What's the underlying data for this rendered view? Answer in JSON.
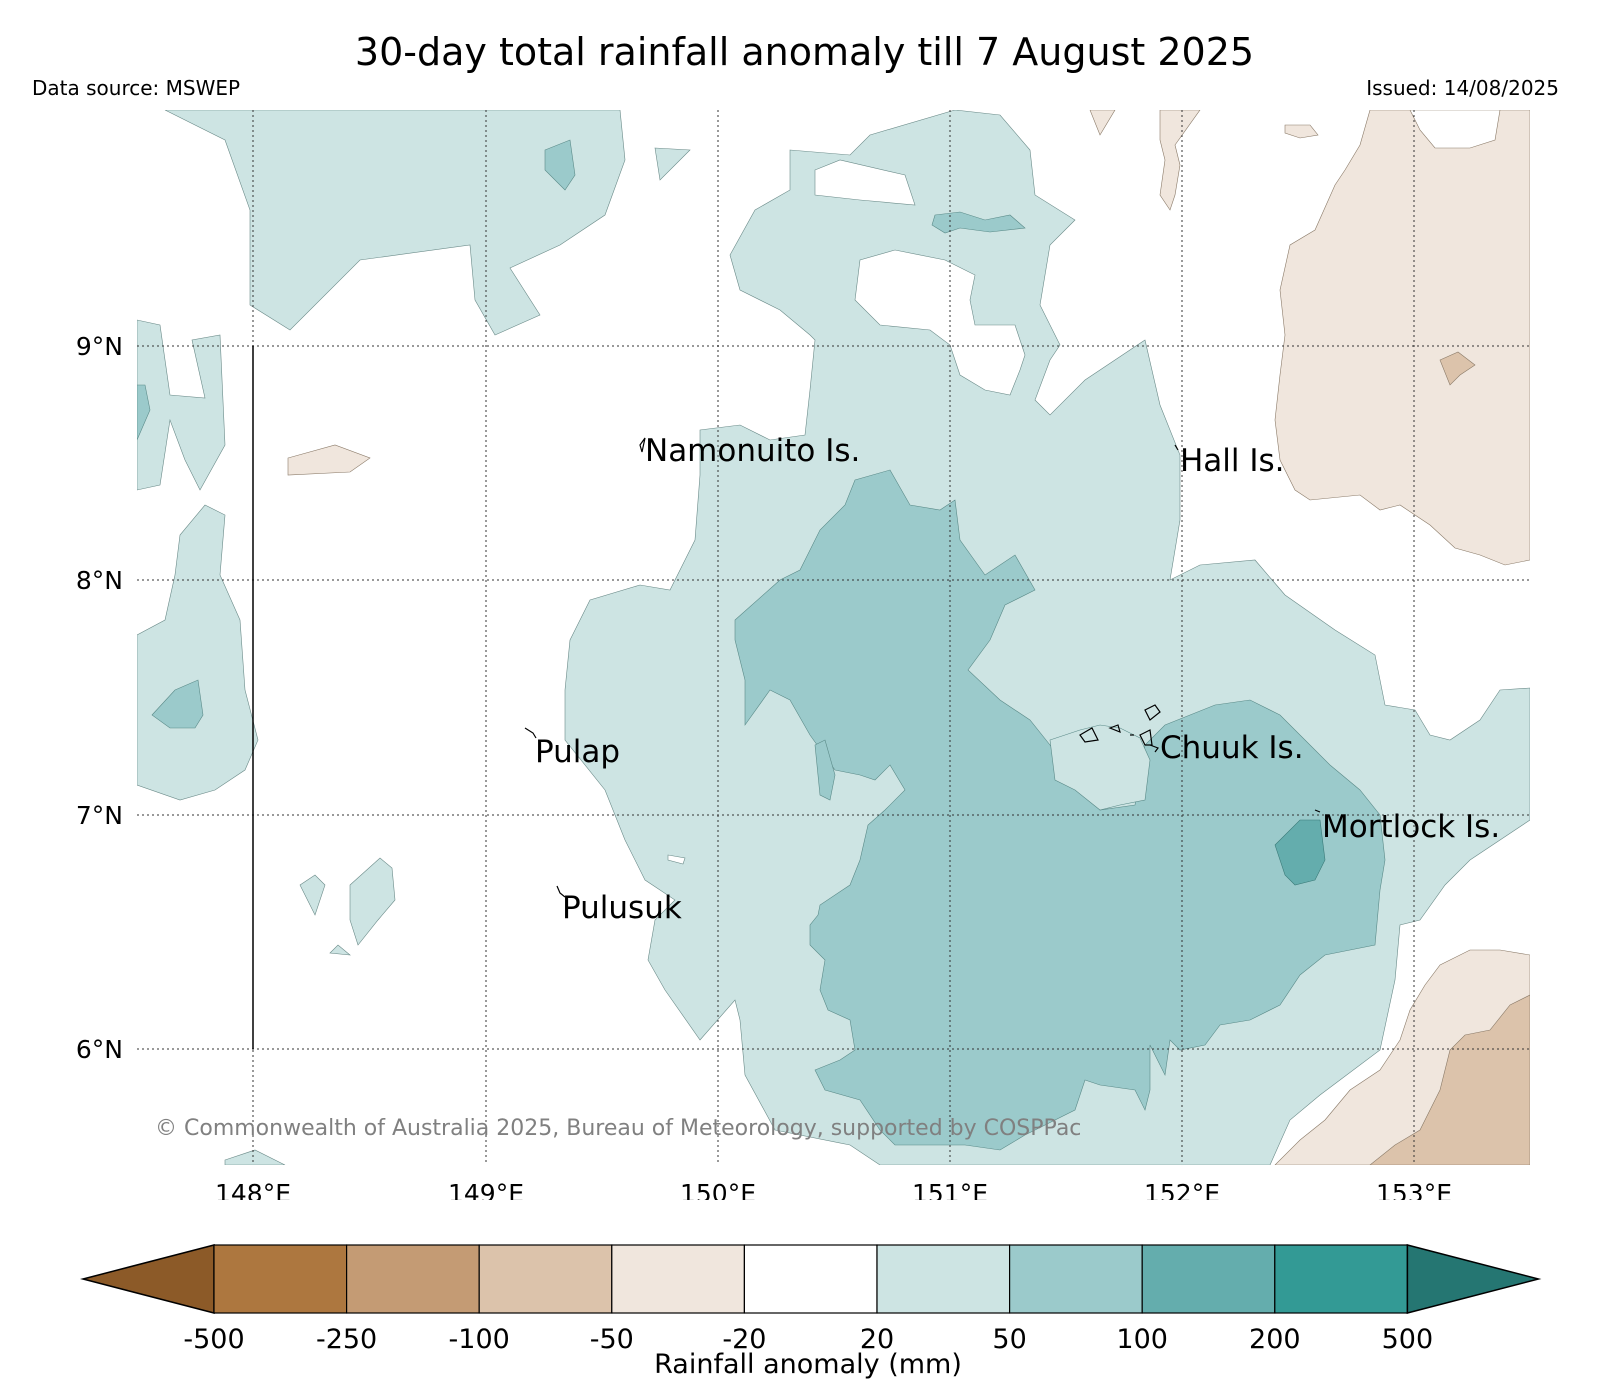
{
  "title": "30-day total rainfall anomaly till 7 August 2025",
  "data_source": "Data source: MSWEP",
  "issued": "Issued: 14/08/2025",
  "copyright": "© Commonwealth of Australia 2025, Bureau of Meteorology, supported by COSPPac",
  "axes": {
    "lon_ticks": [
      "148°E",
      "149°E",
      "150°E",
      "151°E",
      "152°E",
      "153°E"
    ],
    "lat_ticks": [
      "9°N",
      "8°N",
      "7°N",
      "6°N"
    ]
  },
  "places": {
    "namonuito": "Namonuito Is.",
    "hall": "Hall Is.",
    "pulap": "Pulap",
    "chuuk": "Chuuk Is.",
    "mortlock": "Mortlock Is.",
    "pulusuk": "Pulusuk"
  },
  "colorbar": {
    "label": "Rainfall anomaly (mm)",
    "ticks": [
      "-500",
      "-250",
      "-100",
      "-50",
      "-20",
      "20",
      "50",
      "100",
      "200",
      "500"
    ],
    "colors": [
      "#8c5a28",
      "#ad773f",
      "#c49b74",
      "#dcc3ab",
      "#f0e6dd",
      "#ffffff",
      "#cde4e3",
      "#9bcacb",
      "#64adad",
      "#339a95",
      "#257672"
    ]
  }
}
